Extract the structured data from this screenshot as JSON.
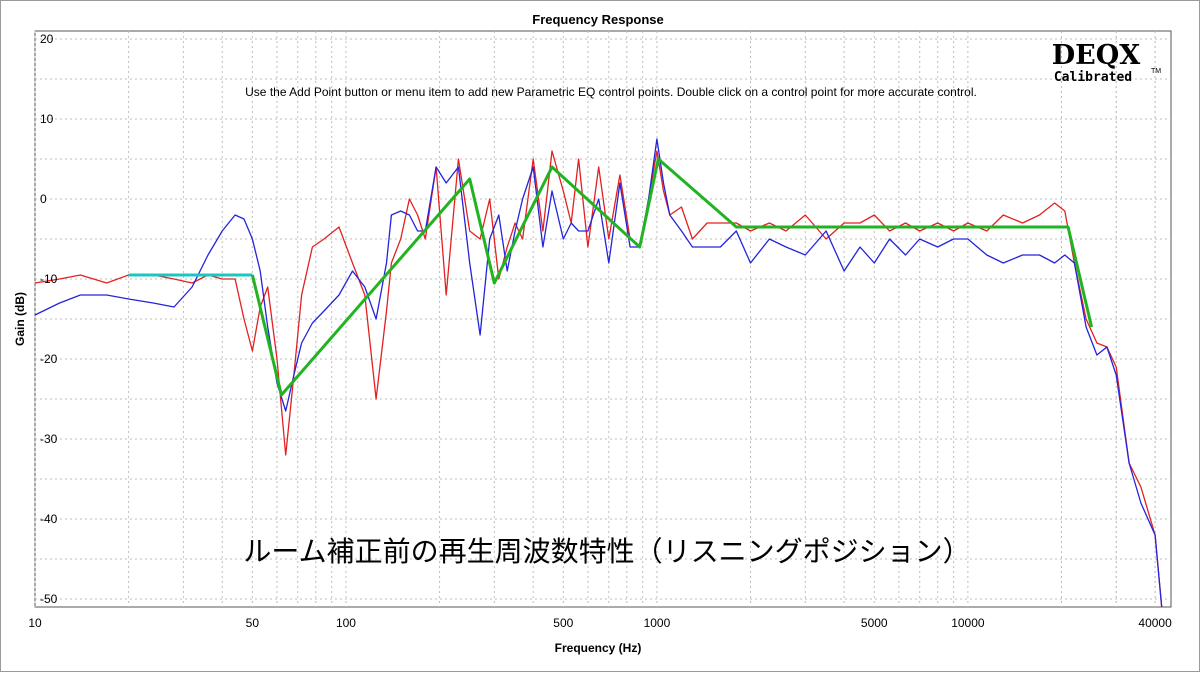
{
  "logo": {
    "brand": "DEQX",
    "sub": "Calibrated",
    "tm": "TM"
  },
  "instruction": "Use the Add Point button or menu item to add new Parametric EQ control points.  Double click on a control point for more accurate control.",
  "overlay_caption": "ルーム補正前の再生周波数特性（リスニングポジション）",
  "colors": {
    "red": "#e32121",
    "blue": "#2424dd",
    "green": "#22b322",
    "cyan": "#18c8c0",
    "grid": "#bdbdbd"
  },
  "chart_data": {
    "type": "line",
    "title": "Frequency Response",
    "xlabel": "Frequency (Hz)",
    "ylabel": "Gain (dB)",
    "x_scale": "log",
    "xlim": [
      10,
      45000
    ],
    "ylim": [
      -51,
      21
    ],
    "grid": true,
    "x_ticks": [
      10,
      50,
      100,
      500,
      1000,
      5000,
      10000,
      40000
    ],
    "x_tick_labels": [
      "10",
      "50",
      "100",
      "500",
      "1000",
      "5000",
      "10000",
      "40000"
    ],
    "y_ticks": [
      20,
      10,
      0,
      -10,
      -20,
      -30,
      -40,
      -50
    ],
    "y_tick_labels": [
      "20",
      "10",
      "0",
      "-10",
      "-20",
      "-30",
      "-40",
      "-50"
    ],
    "series": [
      {
        "color": "red",
        "x": [
          10,
          12,
          14,
          17,
          20,
          24,
          28,
          32,
          36,
          40,
          44,
          47,
          50,
          53,
          56,
          60,
          64,
          68,
          72,
          78,
          85,
          95,
          105,
          115,
          125,
          135,
          140,
          150,
          160,
          170,
          180,
          195,
          210,
          230,
          250,
          270,
          290,
          310,
          330,
          350,
          370,
          400,
          430,
          460,
          500,
          530,
          560,
          600,
          650,
          700,
          760,
          820,
          880,
          940,
          1000,
          1050,
          1100,
          1200,
          1300,
          1450,
          1600,
          1800,
          2000,
          2300,
          2600,
          3000,
          3500,
          4000,
          4500,
          5000,
          5600,
          6300,
          7000,
          8000,
          9000,
          10000,
          11500,
          13000,
          15000,
          17000,
          19000,
          20500,
          22000,
          24000,
          26000,
          28000,
          30000,
          33000,
          36000,
          40000,
          42000
        ],
        "y": [
          -10.5,
          -10,
          -9.5,
          -10.5,
          -9.5,
          -9.5,
          -10,
          -10.5,
          -9.5,
          -10,
          -10,
          -15,
          -19,
          -13.5,
          -11,
          -20,
          -32,
          -22,
          -12,
          -6,
          -5,
          -3.5,
          -8,
          -12,
          -25,
          -14,
          -8,
          -5,
          0,
          -2,
          -5,
          4,
          -12,
          5,
          -4,
          -5,
          0,
          -10,
          -6,
          -3,
          -5,
          5,
          -4,
          6,
          1,
          -3,
          5,
          -6,
          4,
          -5,
          3,
          -5,
          -6,
          0,
          6,
          1,
          -2,
          -1,
          -5,
          -3,
          -3,
          -3,
          -4,
          -3,
          -4,
          -2,
          -5,
          -3,
          -3,
          -2,
          -4,
          -3,
          -4,
          -3,
          -4,
          -3,
          -4,
          -2,
          -3,
          -2,
          -0.5,
          -1.5,
          -8,
          -15,
          -18,
          -18.5,
          -21,
          -33,
          -36,
          -42,
          -51
        ]
      },
      {
        "color": "blue",
        "x": [
          10,
          12,
          14,
          17,
          20,
          24,
          28,
          32,
          36,
          40,
          44,
          47,
          50,
          53,
          56,
          60,
          64,
          68,
          72,
          78,
          85,
          95,
          105,
          115,
          125,
          135,
          140,
          150,
          160,
          170,
          180,
          195,
          210,
          230,
          250,
          270,
          290,
          310,
          330,
          350,
          370,
          400,
          430,
          460,
          500,
          530,
          560,
          600,
          650,
          700,
          760,
          820,
          880,
          940,
          1000,
          1050,
          1100,
          1200,
          1300,
          1450,
          1600,
          1800,
          2000,
          2300,
          2600,
          3000,
          3500,
          4000,
          4500,
          5000,
          5600,
          6300,
          7000,
          8000,
          9000,
          10000,
          11500,
          13000,
          15000,
          17000,
          19000,
          20500,
          22000,
          24000,
          26000,
          28000,
          30000,
          33000,
          36000,
          40000,
          42000
        ],
        "y": [
          -14.5,
          -13,
          -12,
          -12,
          -12.5,
          -13,
          -13.5,
          -11,
          -7,
          -4,
          -2,
          -2.5,
          -5,
          -9,
          -16,
          -23,
          -26.5,
          -22,
          -18,
          -15.5,
          -14,
          -12,
          -9,
          -11,
          -15,
          -8,
          -2,
          -1.5,
          -2,
          -4,
          -4,
          4,
          2,
          4,
          -8,
          -17,
          -5,
          -2,
          -9,
          -4,
          0,
          4,
          -6,
          1,
          -5,
          -3,
          -4,
          -4,
          0,
          -8,
          2,
          -6,
          -6,
          0,
          7.5,
          2,
          -2,
          -4,
          -6,
          -6,
          -6,
          -4,
          -8,
          -5,
          -6,
          -7,
          -4,
          -9,
          -6,
          -8,
          -5,
          -7,
          -5,
          -6,
          -5,
          -5,
          -7,
          -8,
          -7,
          -7,
          -8,
          -7,
          -8,
          -16,
          -19.5,
          -18.5,
          -22,
          -33,
          -38,
          -42,
          -51
        ]
      },
      {
        "color": "cyan",
        "x": [
          20,
          50
        ],
        "y": [
          -9.5,
          -9.5
        ]
      },
      {
        "color": "green",
        "x": [
          50,
          62,
          250,
          300,
          460,
          880,
          1010,
          1800,
          21000,
          25000
        ],
        "y": [
          -9.5,
          -24.5,
          2.5,
          -10.5,
          4,
          -6,
          5,
          -3.5,
          -3.5,
          -16
        ]
      }
    ]
  }
}
